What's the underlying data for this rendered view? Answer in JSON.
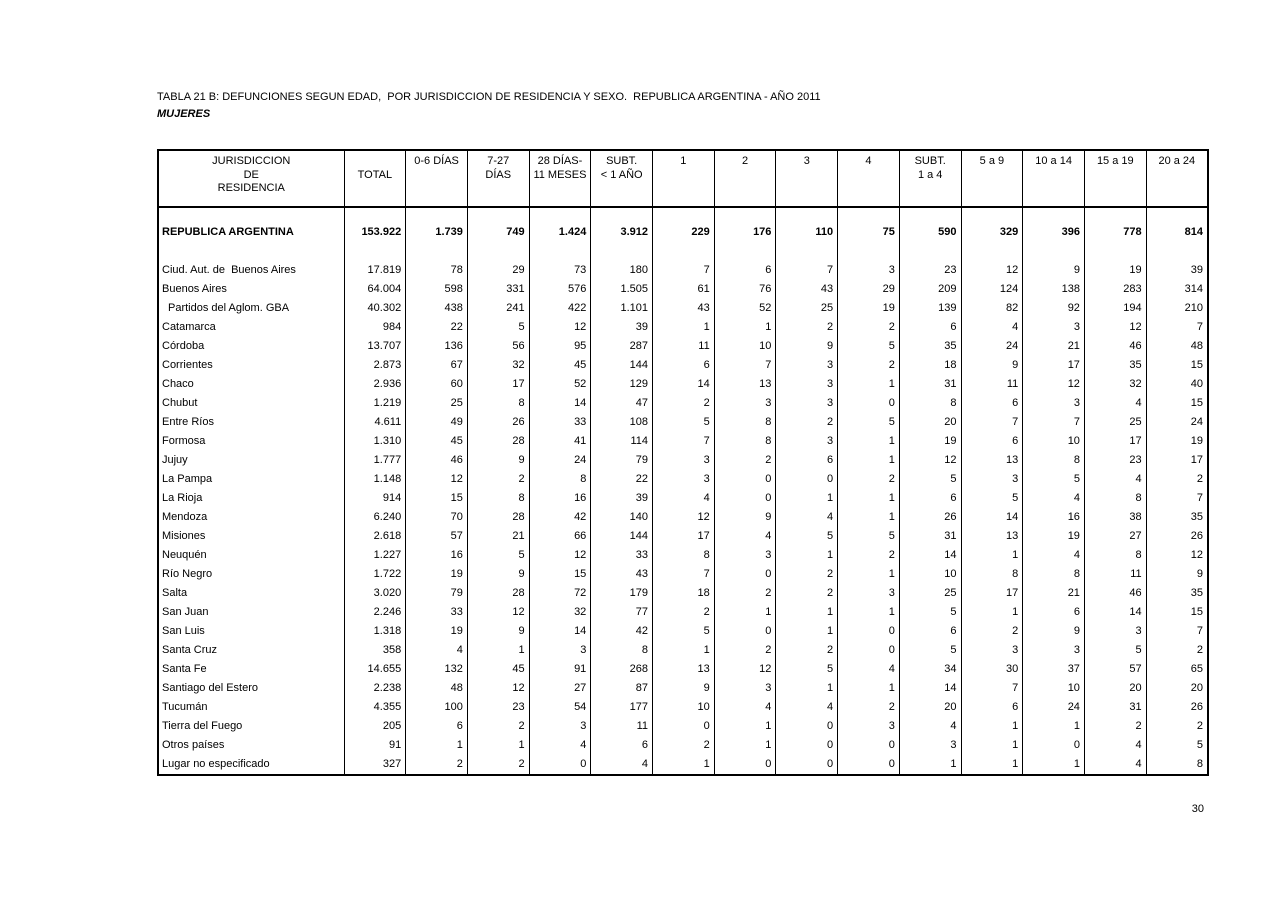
{
  "title": "TABLA 21 B: DEFUNCIONES SEGUN EDAD,  POR JURISDICCION DE RESIDENCIA Y SEXO.  REPUBLICA ARGENTINA - AÑO 2011",
  "subtitle": "MUJERES",
  "page_number": "30",
  "table": {
    "headers": [
      {
        "lines": [
          "JURISDICCION",
          "DE",
          "RESIDENCIA"
        ]
      },
      {
        "lines": [
          "TOTAL"
        ],
        "valign": "middle"
      },
      {
        "lines": [
          "0-6 DÍAS"
        ]
      },
      {
        "lines": [
          "7-27",
          "DÍAS"
        ]
      },
      {
        "lines": [
          "28 DÍAS-",
          "11 MESES"
        ]
      },
      {
        "lines": [
          "SUBT.",
          "< 1 AÑO"
        ]
      },
      {
        "lines": [
          "1"
        ]
      },
      {
        "lines": [
          "2"
        ]
      },
      {
        "lines": [
          "3"
        ]
      },
      {
        "lines": [
          "4"
        ]
      },
      {
        "lines": [
          "SUBT.",
          "1 a 4"
        ]
      },
      {
        "lines": [
          "5 a 9"
        ]
      },
      {
        "lines": [
          "10 a 14"
        ]
      },
      {
        "lines": [
          "15 a 19"
        ]
      },
      {
        "lines": [
          "20 a 24"
        ]
      }
    ],
    "rows": [
      {
        "label": "REPUBLICA ARGENTINA",
        "bold": true,
        "values": [
          "153.922",
          "1.739",
          "749",
          "1.424",
          "3.912",
          "229",
          "176",
          "110",
          "75",
          "590",
          "329",
          "396",
          "778",
          "814"
        ]
      },
      {
        "label": "Ciud. Aut. de  Buenos Aires",
        "values": [
          "17.819",
          "78",
          "29",
          "73",
          "180",
          "7",
          "6",
          "7",
          "3",
          "23",
          "12",
          "9",
          "19",
          "39"
        ]
      },
      {
        "label": "Buenos Aires",
        "values": [
          "64.004",
          "598",
          "331",
          "576",
          "1.505",
          "61",
          "76",
          "43",
          "29",
          "209",
          "124",
          "138",
          "283",
          "314"
        ]
      },
      {
        "label": "Partidos del Aglom. GBA",
        "indent": true,
        "values": [
          "40.302",
          "438",
          "241",
          "422",
          "1.101",
          "43",
          "52",
          "25",
          "19",
          "139",
          "82",
          "92",
          "194",
          "210"
        ]
      },
      {
        "label": "Catamarca",
        "values": [
          "984",
          "22",
          "5",
          "12",
          "39",
          "1",
          "1",
          "2",
          "2",
          "6",
          "4",
          "3",
          "12",
          "7"
        ]
      },
      {
        "label": "Córdoba",
        "values": [
          "13.707",
          "136",
          "56",
          "95",
          "287",
          "11",
          "10",
          "9",
          "5",
          "35",
          "24",
          "21",
          "46",
          "48"
        ]
      },
      {
        "label": "Corrientes",
        "values": [
          "2.873",
          "67",
          "32",
          "45",
          "144",
          "6",
          "7",
          "3",
          "2",
          "18",
          "9",
          "17",
          "35",
          "15"
        ]
      },
      {
        "label": "Chaco",
        "values": [
          "2.936",
          "60",
          "17",
          "52",
          "129",
          "14",
          "13",
          "3",
          "1",
          "31",
          "11",
          "12",
          "32",
          "40"
        ]
      },
      {
        "label": "Chubut",
        "values": [
          "1.219",
          "25",
          "8",
          "14",
          "47",
          "2",
          "3",
          "3",
          "0",
          "8",
          "6",
          "3",
          "4",
          "15"
        ]
      },
      {
        "label": "Entre Ríos",
        "values": [
          "4.611",
          "49",
          "26",
          "33",
          "108",
          "5",
          "8",
          "2",
          "5",
          "20",
          "7",
          "7",
          "25",
          "24"
        ]
      },
      {
        "label": "Formosa",
        "values": [
          "1.310",
          "45",
          "28",
          "41",
          "114",
          "7",
          "8",
          "3",
          "1",
          "19",
          "6",
          "10",
          "17",
          "19"
        ]
      },
      {
        "label": "Jujuy",
        "values": [
          "1.777",
          "46",
          "9",
          "24",
          "79",
          "3",
          "2",
          "6",
          "1",
          "12",
          "13",
          "8",
          "23",
          "17"
        ]
      },
      {
        "label": "La Pampa",
        "values": [
          "1.148",
          "12",
          "2",
          "8",
          "22",
          "3",
          "0",
          "0",
          "2",
          "5",
          "3",
          "5",
          "4",
          "2"
        ]
      },
      {
        "label": "La Rioja",
        "values": [
          "914",
          "15",
          "8",
          "16",
          "39",
          "4",
          "0",
          "1",
          "1",
          "6",
          "5",
          "4",
          "8",
          "7"
        ]
      },
      {
        "label": "Mendoza",
        "values": [
          "6.240",
          "70",
          "28",
          "42",
          "140",
          "12",
          "9",
          "4",
          "1",
          "26",
          "14",
          "16",
          "38",
          "35"
        ]
      },
      {
        "label": "Misiones",
        "values": [
          "2.618",
          "57",
          "21",
          "66",
          "144",
          "17",
          "4",
          "5",
          "5",
          "31",
          "13",
          "19",
          "27",
          "26"
        ]
      },
      {
        "label": "Neuquén",
        "values": [
          "1.227",
          "16",
          "5",
          "12",
          "33",
          "8",
          "3",
          "1",
          "2",
          "14",
          "1",
          "4",
          "8",
          "12"
        ]
      },
      {
        "label": "Río Negro",
        "values": [
          "1.722",
          "19",
          "9",
          "15",
          "43",
          "7",
          "0",
          "2",
          "1",
          "10",
          "8",
          "8",
          "11",
          "9"
        ]
      },
      {
        "label": "Salta",
        "values": [
          "3.020",
          "79",
          "28",
          "72",
          "179",
          "18",
          "2",
          "2",
          "3",
          "25",
          "17",
          "21",
          "46",
          "35"
        ]
      },
      {
        "label": "San Juan",
        "values": [
          "2.246",
          "33",
          "12",
          "32",
          "77",
          "2",
          "1",
          "1",
          "1",
          "5",
          "1",
          "6",
          "14",
          "15"
        ]
      },
      {
        "label": "San Luis",
        "values": [
          "1.318",
          "19",
          "9",
          "14",
          "42",
          "5",
          "0",
          "1",
          "0",
          "6",
          "2",
          "9",
          "3",
          "7"
        ]
      },
      {
        "label": "Santa Cruz",
        "values": [
          "358",
          "4",
          "1",
          "3",
          "8",
          "1",
          "2",
          "2",
          "0",
          "5",
          "3",
          "3",
          "5",
          "2"
        ]
      },
      {
        "label": "Santa Fe",
        "values": [
          "14.655",
          "132",
          "45",
          "91",
          "268",
          "13",
          "12",
          "5",
          "4",
          "34",
          "30",
          "37",
          "57",
          "65"
        ]
      },
      {
        "label": "Santiago del Estero",
        "values": [
          "2.238",
          "48",
          "12",
          "27",
          "87",
          "9",
          "3",
          "1",
          "1",
          "14",
          "7",
          "10",
          "20",
          "20"
        ]
      },
      {
        "label": "Tucumán",
        "values": [
          "4.355",
          "100",
          "23",
          "54",
          "177",
          "10",
          "4",
          "4",
          "2",
          "20",
          "6",
          "24",
          "31",
          "26"
        ]
      },
      {
        "label": "Tierra del Fuego",
        "values": [
          "205",
          "6",
          "2",
          "3",
          "11",
          "0",
          "1",
          "0",
          "3",
          "4",
          "1",
          "1",
          "2",
          "2"
        ]
      },
      {
        "label": "Otros países",
        "values": [
          "91",
          "1",
          "1",
          "4",
          "6",
          "2",
          "1",
          "0",
          "0",
          "3",
          "1",
          "0",
          "4",
          "5"
        ]
      },
      {
        "label": "Lugar no especificado",
        "values": [
          "327",
          "2",
          "2",
          "0",
          "4",
          "1",
          "0",
          "0",
          "0",
          "1",
          "1",
          "1",
          "4",
          "8"
        ]
      }
    ]
  }
}
